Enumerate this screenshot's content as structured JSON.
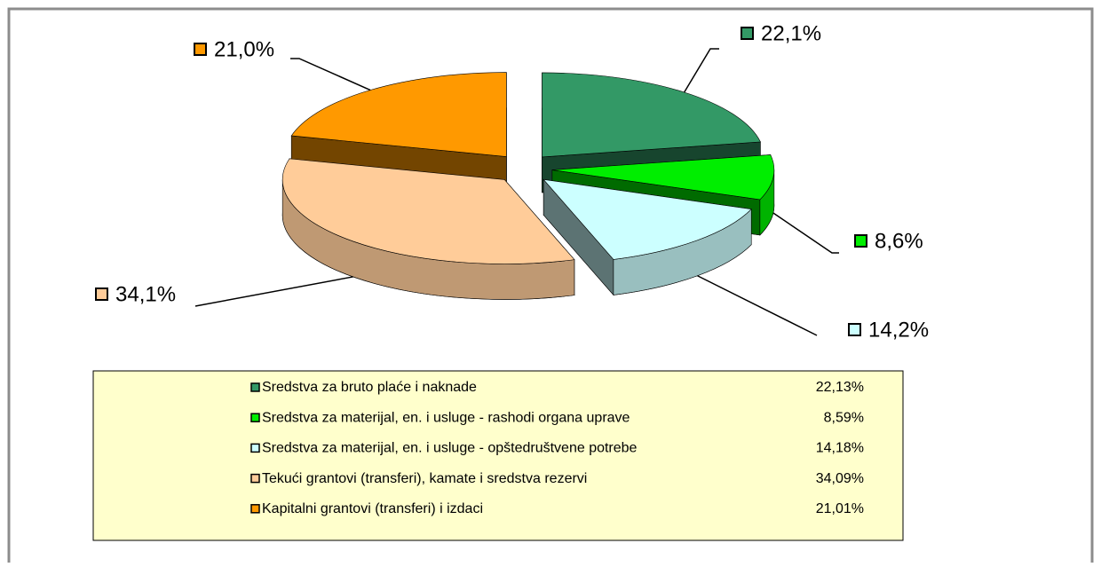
{
  "chart_data": {
    "type": "pie3d",
    "categories": [
      "Sredstva za bruto plaće i naknade",
      "Sredstva za materijal, en. i usluge - rashodi organa uprave",
      "Sredstva za materijal, en. i usluge - opštedruštvene potrebe",
      "Tekući grantovi (transferi), kamate i sredstva rezervi",
      "Kapitalni grantovi (transferi) i izdaci"
    ],
    "values": [
      22.13,
      8.59,
      14.18,
      34.09,
      21.01
    ],
    "value_labels": [
      "22,1%",
      "8,6%",
      "14,2%",
      "34,1%",
      "21,0%"
    ],
    "legend_value_labels": [
      "22,13%",
      "8,59%",
      "14,18%",
      "34,09%",
      "21,01%"
    ],
    "colors": [
      "#339966",
      "#00ee00",
      "#ccffff",
      "#ffcc99",
      "#ff9900"
    ],
    "legend_position": "bottom"
  }
}
